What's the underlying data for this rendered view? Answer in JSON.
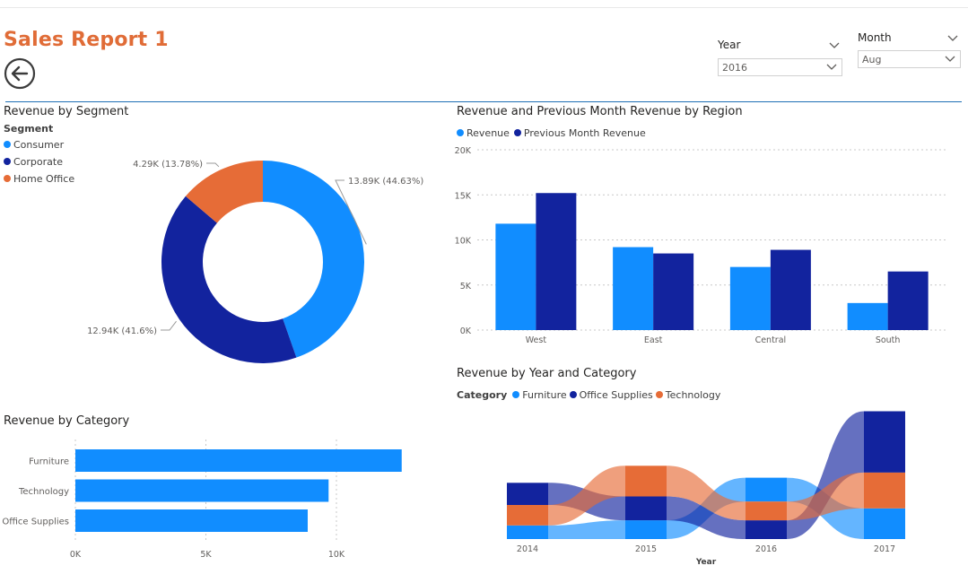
{
  "report": {
    "title": "Sales Report 1"
  },
  "slicers": {
    "year": {
      "label": "Year",
      "value": "2016"
    },
    "month": {
      "label": "Month",
      "value": "Aug"
    }
  },
  "colors": {
    "light_blue": "#118dff",
    "dark_blue": "#12239e",
    "orange": "#e66c37",
    "title_orange": "#e06c37"
  },
  "segment_chart": {
    "title": "Revenue by Segment",
    "legend_title": "Segment",
    "chart_data": {
      "type": "pie",
      "variant": "donut",
      "categories": [
        "Consumer",
        "Corporate",
        "Home Office"
      ],
      "values": [
        13.89,
        12.94,
        4.29
      ],
      "unit": "K",
      "data_labels": [
        "13.89K (44.63%)",
        "12.94K (41.6%)",
        "4.29K (13.78%)"
      ],
      "colors": [
        "#118dff",
        "#12239e",
        "#e66c37"
      ]
    }
  },
  "region_chart": {
    "title": "Revenue and Previous Month Revenue by Region",
    "chart_data": {
      "type": "bar",
      "categories": [
        "West",
        "East",
        "Central",
        "South"
      ],
      "series": [
        {
          "name": "Revenue",
          "values": [
            11800,
            9200,
            7000,
            3000
          ],
          "color": "#118dff"
        },
        {
          "name": "Previous Month Revenue",
          "values": [
            15200,
            8500,
            8900,
            6500
          ],
          "color": "#12239e"
        }
      ],
      "ylim": [
        0,
        20000
      ],
      "yticks": [
        "0K",
        "5K",
        "10K",
        "15K",
        "20K"
      ],
      "grid": true,
      "legend": "top-left"
    }
  },
  "category_chart": {
    "title": "Revenue by Category",
    "chart_data": {
      "type": "bar",
      "orientation": "horizontal",
      "categories": [
        "Furniture",
        "Technology",
        "Office Supplies"
      ],
      "values": [
        12500,
        9700,
        8900
      ],
      "xlim": [
        0,
        12500
      ],
      "xticks": [
        "0K",
        "5K",
        "10K"
      ],
      "grid": true,
      "color": "#118dff"
    }
  },
  "year_category_chart": {
    "title": "Revenue by Year and Category",
    "legend_title": "Category",
    "chart_data": {
      "type": "area",
      "variant": "ribbon",
      "x": [
        "2014",
        "2015",
        "2016",
        "2017"
      ],
      "xlabel": "Year",
      "series": [
        {
          "name": "Furniture",
          "values": [
            4,
            5.5,
            7,
            9
          ],
          "color": "#118dff"
        },
        {
          "name": "Office Supplies",
          "values": [
            6.5,
            7,
            5.5,
            18
          ],
          "color": "#12239e"
        },
        {
          "name": "Technology",
          "values": [
            6,
            9,
            5.5,
            10.5
          ],
          "color": "#e66c37"
        }
      ],
      "rank_order": [
        [
          "Office Supplies",
          "Technology",
          "Furniture"
        ],
        [
          "Technology",
          "Office Supplies",
          "Furniture"
        ],
        [
          "Furniture",
          "Technology",
          "Office Supplies"
        ],
        [
          "Office Supplies",
          "Technology",
          "Furniture"
        ]
      ],
      "legend": "top-left"
    }
  }
}
